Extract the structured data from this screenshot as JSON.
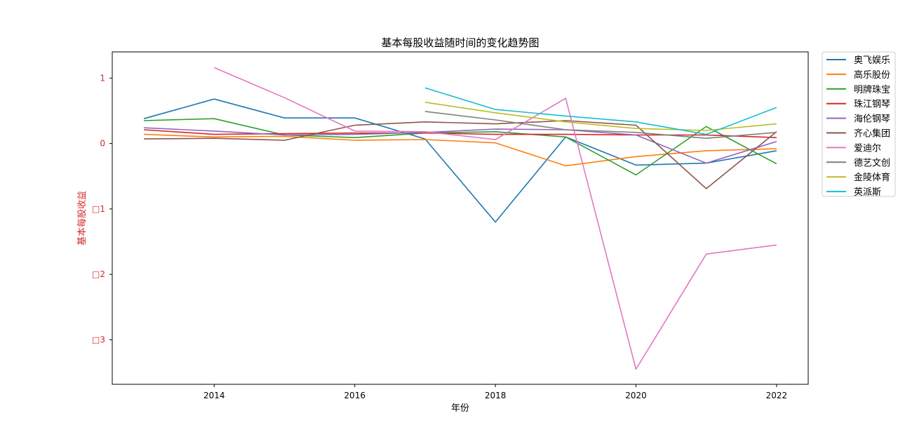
{
  "chart_data": {
    "type": "line",
    "title": "基本每股收益随时间的变化趋势图",
    "xlabel": "年份",
    "ylabel": "基本每股收益",
    "xlim": [
      2012.55,
      2022.45
    ],
    "ylim": [
      -3.68,
      1.4
    ],
    "x_ticks": [
      2014,
      2016,
      2018,
      2020,
      2022
    ],
    "x_tick_labels": [
      "2014",
      "2016",
      "2018",
      "2020",
      "2022"
    ],
    "y_ticks": [
      1,
      0,
      -1,
      -2,
      -3
    ],
    "y_tick_labels": [
      "1",
      "0",
      "□1",
      "□2",
      "□3"
    ],
    "ylabel_color": "#d62728",
    "grid": false,
    "legend_position": "outside-right-top",
    "series": [
      {
        "name": "奥飞娱乐",
        "color": "#1f77b4",
        "x": [
          2013,
          2014,
          2015,
          2016,
          2017,
          2018,
          2019,
          2020,
          2021,
          2022
        ],
        "y": [
          0.38,
          0.68,
          0.39,
          0.39,
          0.07,
          -1.2,
          0.1,
          -0.33,
          -0.3,
          -0.11
        ]
      },
      {
        "name": "高乐股份",
        "color": "#ff7f0e",
        "x": [
          2013,
          2014,
          2015,
          2016,
          2017,
          2018,
          2019,
          2020,
          2021,
          2022
        ],
        "y": [
          0.14,
          0.1,
          0.11,
          0.05,
          0.06,
          0.01,
          -0.34,
          -0.2,
          -0.11,
          -0.08
        ]
      },
      {
        "name": "明牌珠宝",
        "color": "#2ca02c",
        "x": [
          2013,
          2014,
          2015,
          2016,
          2017,
          2018,
          2019,
          2020,
          2021,
          2022
        ],
        "y": [
          0.35,
          0.38,
          0.13,
          0.09,
          0.16,
          0.18,
          0.1,
          -0.48,
          0.26,
          -0.31
        ]
      },
      {
        "name": "珠江钢琴",
        "color": "#d62728",
        "x": [
          2013,
          2014,
          2015,
          2016,
          2017,
          2018,
          2019,
          2020,
          2021,
          2022
        ],
        "y": [
          0.21,
          0.14,
          0.15,
          0.16,
          0.16,
          0.14,
          0.14,
          0.13,
          0.13,
          0.09
        ]
      },
      {
        "name": "海伦钢琴",
        "color": "#9467bd",
        "x": [
          2013,
          2014,
          2015,
          2016,
          2017,
          2018,
          2019,
          2020,
          2021,
          2022
        ],
        "y": [
          0.24,
          0.19,
          0.13,
          0.14,
          0.17,
          0.22,
          0.21,
          0.13,
          -0.3,
          0.03
        ]
      },
      {
        "name": "齐心集团",
        "color": "#8c564b",
        "x": [
          2013,
          2014,
          2015,
          2016,
          2017,
          2018,
          2019,
          2020,
          2021,
          2022
        ],
        "y": [
          0.07,
          0.08,
          0.05,
          0.28,
          0.33,
          0.3,
          0.35,
          0.28,
          -0.69,
          0.18
        ]
      },
      {
        "name": "爱迪尔",
        "color": "#e377c2",
        "x": [
          2014,
          2015,
          2016,
          2017,
          2018,
          2019,
          2020,
          2021,
          2022
        ],
        "y": [
          1.16,
          0.7,
          0.19,
          0.18,
          0.06,
          0.69,
          -3.45,
          -1.69,
          -1.55
        ]
      },
      {
        "name": "德艺文创",
        "color": "#7f7f7f",
        "x": [
          2017,
          2018,
          2019,
          2020,
          2021,
          2022
        ],
        "y": [
          0.49,
          0.36,
          0.21,
          0.17,
          0.08,
          0.17
        ]
      },
      {
        "name": "金陵体育",
        "color": "#bcbd22",
        "x": [
          2017,
          2018,
          2019,
          2020,
          2021,
          2022
        ],
        "y": [
          0.63,
          0.47,
          0.33,
          0.23,
          0.2,
          0.3
        ]
      },
      {
        "name": "英派斯",
        "color": "#17becf",
        "x": [
          2017,
          2018,
          2019,
          2020,
          2021,
          2022
        ],
        "y": [
          0.85,
          0.52,
          0.42,
          0.33,
          0.14,
          0.55
        ]
      }
    ]
  }
}
